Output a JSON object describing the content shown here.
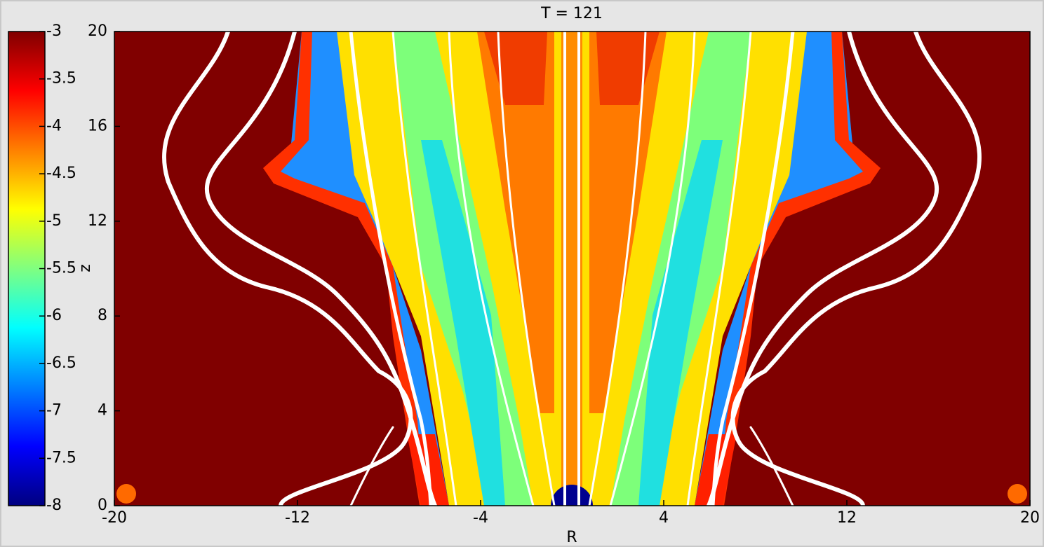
{
  "chart_data": {
    "type": "heatmap",
    "title": "T = 121",
    "xlabel": "R",
    "ylabel": "z",
    "xlim": [
      -20,
      20
    ],
    "xticks": [
      -20,
      -12,
      -4,
      4,
      12,
      20
    ],
    "ylim": [
      0,
      20
    ],
    "yticks": [
      0,
      4,
      8,
      12,
      16,
      20
    ],
    "colorbar": {
      "colormap": "jet",
      "clim": [
        -8,
        -3
      ],
      "ticks": [
        -3,
        -3.5,
        -4,
        -4.5,
        -5,
        -5.5,
        -6,
        -6.5,
        -7,
        -7.5,
        -8
      ]
    }
  }
}
